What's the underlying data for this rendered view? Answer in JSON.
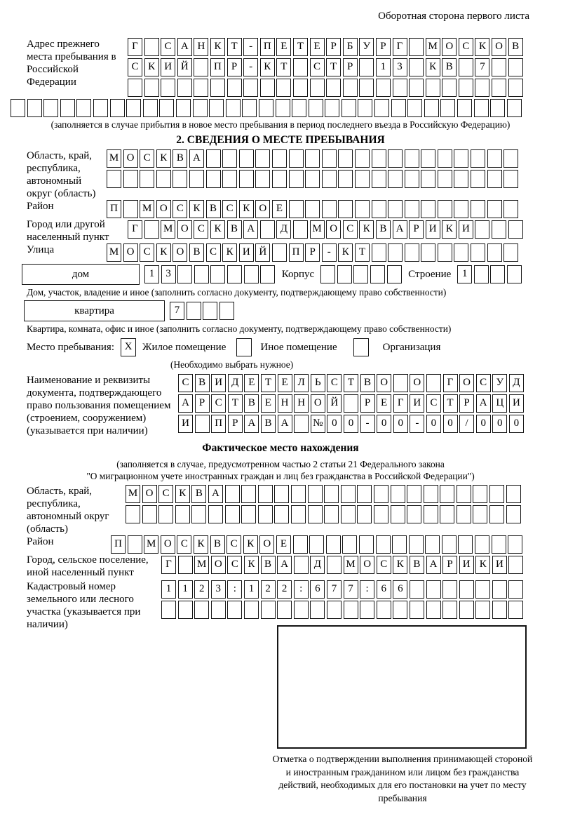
{
  "page": {
    "header": "Оборотная сторона первого листа"
  },
  "section1": {
    "label": "Адрес прежнего места пребывания в Российской Федерации",
    "rows": [
      {
        "text": "Г САНКТ-ПЕТЕРБУРГ МОСКОВ",
        "len": 24
      },
      {
        "text": "СКИЙ ПР-КТ СТР 13 КВ 7",
        "len": 24
      },
      {
        "text": "",
        "len": 24
      }
    ],
    "overflow_row": {
      "text": "",
      "len": 31
    },
    "caption": "(заполняется в случае прибытия в новое место пребывания в период последнего въезда в Российскую Федерацию)"
  },
  "section2": {
    "title": "2. СВЕДЕНИЯ О МЕСТЕ ПРЕБЫВАНИЯ",
    "region": {
      "label": "Область, край, республика, автономный округ (область)",
      "rows": [
        {
          "text": "МОСКВА",
          "len": 25
        },
        {
          "text": "",
          "len": 25
        }
      ]
    },
    "district": {
      "label": "Район",
      "row": {
        "text": "П МОСКВСКОЕ",
        "len": 25
      }
    },
    "city": {
      "label": "Город или другой населенный пункт",
      "row": {
        "text": "Г МОСКВА Д МОСКВАРИКИ",
        "len": 24
      }
    },
    "street": {
      "label": "Улица",
      "row": {
        "text": "МОСКОВСКИЙ ПР-КТ",
        "len": 25
      }
    },
    "house": {
      "label": "дом",
      "row": {
        "text": "13",
        "len": 8
      }
    },
    "korpus": {
      "label": "Корпус",
      "row": {
        "text": "",
        "len": 5
      }
    },
    "building": {
      "label": "Строение",
      "row": {
        "text": "1",
        "len": 4
      }
    },
    "house_caption": "Дом, участок, владение и иное (заполнить согласно документу, подтверждающему право собственности)",
    "apartment": {
      "label": "квартира",
      "row": {
        "text": "7",
        "len": 4
      }
    },
    "apartment_caption": "Квартира, комната, офис и иное (заполнить согласно документу, подтверждающему право собственности)",
    "place_type": {
      "label": "Место пребывания:",
      "options": [
        {
          "label": "Жилое помещение",
          "mark": "X"
        },
        {
          "label": "Иное помещение",
          "mark": ""
        },
        {
          "label": "Организация",
          "mark": ""
        }
      ],
      "note": "(Необходимо выбрать нужное)"
    },
    "document": {
      "label": "Наименование и реквизиты документа, подтверждающего право пользования помещением (строением, сооружением) (указывается при наличии)",
      "rows": [
        {
          "text": "СВИДЕТЕЛЬСТВО О ГОСУД",
          "len": 21
        },
        {
          "text": "АРСТВЕННОЙ РЕГИСТРАЦИ",
          "len": 21
        },
        {
          "text": "И ПРАВА №00-00-00/000",
          "len": 21
        }
      ]
    }
  },
  "actual_location": {
    "title": "Фактическое место нахождения",
    "caption_line1": "(заполняется в случае, предусмотренном частью 2 статьи 21 Федерального закона",
    "caption_line2": "\"О миграционном учете иностранных граждан и лиц без гражданства в Российской Федерации\")",
    "region": {
      "label": "Область, край, республика, автономный округ (область)",
      "rows": [
        {
          "text": "МОСКВА",
          "len": 24
        },
        {
          "text": "",
          "len": 24
        }
      ]
    },
    "district": {
      "label": "Район",
      "row": {
        "text": "П МОСКВСКОЕ",
        "len": 25
      }
    },
    "city": {
      "label": "Город, сельское поселение, иной населенный пункт",
      "row": {
        "text": "Г МОСКВА Д МОСКВАРИКИ",
        "len": 22
      }
    },
    "cadastre": {
      "label": "Кадастровый номер земельного или лесного участка (указывается при наличии)",
      "rows": [
        {
          "text": "1123:122:677:66",
          "len": 22
        },
        {
          "text": "",
          "len": 22
        }
      ]
    },
    "stamp_caption": "Отметка о подтверждении выполнения принимающей стороной и иностранным гражданином или лицом без гражданства действий, необходимых для его постановки на учет по месту пребывания"
  }
}
